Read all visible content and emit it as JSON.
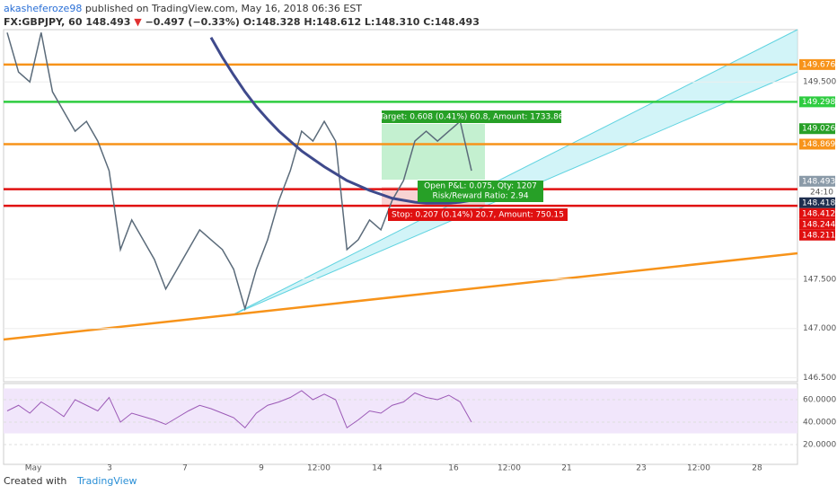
{
  "header": {
    "author": "akasheferoze98",
    "published": "published on TradingView.com, May 16, 2018 06:36 EST",
    "symbol": "FX:GBPJPY, 60",
    "last": "148.493",
    "arrow": "▼",
    "change": "−0.497 (−0.33%)",
    "ohlc": "O:148.328 H:148.612 L:148.310 C:148.493"
  },
  "chart_data": {
    "type": "line",
    "series": [
      {
        "name": "GBPJPY",
        "color": "#5b6b7a",
        "values": [
          150.0,
          149.6,
          149.5,
          150.0,
          149.4,
          149.2,
          149.0,
          149.1,
          148.9,
          148.6,
          147.8,
          148.1,
          147.9,
          147.7,
          147.4,
          147.6,
          147.8,
          148.0,
          147.9,
          147.8,
          147.6,
          147.2,
          147.6,
          147.9,
          148.3,
          148.6,
          149.0,
          148.9,
          149.1,
          148.9,
          147.8,
          147.9,
          148.1,
          148.0,
          148.3,
          148.5,
          148.9,
          149.0,
          148.9,
          149.0,
          149.1,
          148.6
        ]
      },
      {
        "name": "MA",
        "color": "#3f4a8c",
        "values": [
          null,
          null,
          null,
          null,
          null,
          null,
          null,
          null,
          null,
          null,
          null,
          null,
          null,
          null,
          null,
          null,
          null,
          null,
          149.95,
          149.75,
          149.57,
          149.4,
          149.25,
          149.12,
          149.0,
          148.9,
          148.8,
          148.72,
          148.64,
          148.57,
          148.5,
          148.45,
          148.4,
          148.36,
          148.32,
          148.3,
          148.28,
          148.27,
          148.27,
          148.27,
          148.28,
          148.3
        ]
      }
    ],
    "ylim": [
      146.46,
      150.03
    ],
    "yticks": [
      {
        "value": 146.5,
        "label": "146.500"
      },
      {
        "value": 147,
        "label": "147.000"
      },
      {
        "value": 147.5,
        "label": "147.500"
      },
      {
        "value": 149.5,
        "label": "149.500"
      }
    ],
    "levels": [
      {
        "value": 149.676,
        "color": "#f7931a",
        "line": true
      },
      {
        "value": 149.298,
        "color": "#2ecc40",
        "line": true
      },
      {
        "value": 149.026,
        "color": "#27a027",
        "line": false
      },
      {
        "value": 148.869,
        "color": "#f7931a",
        "line": true
      },
      {
        "value": 148.493,
        "color": "#8a9aa8",
        "line": false
      },
      {
        "value": 148.418,
        "color": "#1f2f4f",
        "line": false
      },
      {
        "value": 148.412,
        "color": "#e01010",
        "line": true
      },
      {
        "value": 148.244,
        "color": "#e01010",
        "line": true
      },
      {
        "value": 148.211,
        "color": "#e01010",
        "line": false
      }
    ],
    "countdown": "24:10",
    "xticks": [
      "May",
      "3",
      "7",
      "9",
      "12:00",
      "14",
      "16",
      "12:00",
      "21",
      "23",
      "12:00",
      "28"
    ],
    "position": {
      "target": "Target: 0.608 (0.41%) 60.8, Amount: 1733.86",
      "pnl": "Open P&L: 0.075, Qty: 1207",
      "ratio": "Risk/Reward Ratio: 2.94",
      "stop": "Stop: 0.207 (0.14%) 20.7, Amount: 750.15"
    },
    "rsi": {
      "name": "RSI",
      "color": "#9b59b6",
      "values": [
        50,
        55,
        48,
        58,
        52,
        45,
        60,
        55,
        50,
        62,
        40,
        48,
        45,
        42,
        38,
        44,
        50,
        55,
        52,
        48,
        44,
        35,
        48,
        55,
        58,
        62,
        68,
        60,
        65,
        60,
        35,
        42,
        50,
        48,
        55,
        58,
        66,
        62,
        60,
        64,
        58,
        40
      ],
      "ylim": [
        2.4,
        74.4
      ],
      "yticks": [
        {
          "value": 20,
          "label": "20.0000"
        },
        {
          "value": 40,
          "label": "40.0000"
        },
        {
          "value": 60,
          "label": "60.0000"
        }
      ]
    },
    "footer": {
      "created": "Created with",
      "brand": "TradingView"
    }
  }
}
